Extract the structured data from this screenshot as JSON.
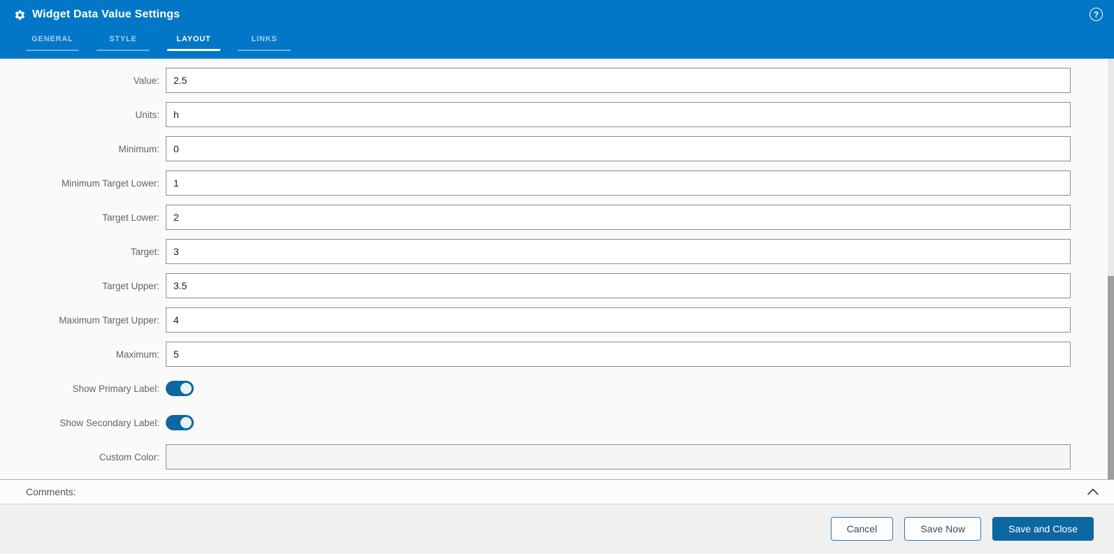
{
  "window": {
    "title": "Widget Data Value Settings"
  },
  "header": {
    "tabs": [
      {
        "label": "GENERAL",
        "active": false
      },
      {
        "label": "STYLE",
        "active": false
      },
      {
        "label": "LAYOUT",
        "active": true
      },
      {
        "label": "LINKS",
        "active": false
      }
    ]
  },
  "form": {
    "fields": [
      {
        "name": "value",
        "label": "Value:",
        "type": "text",
        "value": "2.5"
      },
      {
        "name": "units",
        "label": "Units:",
        "type": "text",
        "value": "h"
      },
      {
        "name": "minimum",
        "label": "Minimum:",
        "type": "text",
        "value": "0"
      },
      {
        "name": "minimum-target-lower",
        "label": "Minimum Target Lower:",
        "type": "text",
        "value": "1"
      },
      {
        "name": "target-lower",
        "label": "Target Lower:",
        "type": "text",
        "value": "2"
      },
      {
        "name": "target",
        "label": "Target:",
        "type": "text",
        "value": "3"
      },
      {
        "name": "target-upper",
        "label": "Target Upper:",
        "type": "text",
        "value": "3.5"
      },
      {
        "name": "maximum-target-upper",
        "label": "Maximum Target Upper:",
        "type": "text",
        "value": "4"
      },
      {
        "name": "maximum",
        "label": "Maximum:",
        "type": "text",
        "value": "5"
      },
      {
        "name": "show-primary-label",
        "label": "Show Primary Label:",
        "type": "toggle",
        "on": true
      },
      {
        "name": "show-secondary-label",
        "label": "Show Secondary Label:",
        "type": "toggle",
        "on": true
      },
      {
        "name": "custom-color",
        "label": "Custom Color:",
        "type": "text",
        "value": "",
        "muted": true
      }
    ]
  },
  "comments": {
    "label": "Comments:"
  },
  "footer": {
    "buttons": [
      {
        "label": "Cancel",
        "style": "outline"
      },
      {
        "label": "Save Now",
        "style": "outline"
      },
      {
        "label": "Save and Close",
        "style": "primary"
      }
    ]
  },
  "icons": {
    "title": "gear-icon",
    "help": "help-icon",
    "comments_collapse": "chevron-up-icon"
  },
  "colors": {
    "header_bg": "#0277c7",
    "accent": "#0d67a1",
    "inactive_tab_text": "#a9cde9",
    "page_bg": "#fafafa",
    "footer_bg": "#f0f0f0",
    "input_border": "#8c8c8c",
    "label_text": "#5c666f",
    "scrollbar_thumb": "#9f9f9f"
  }
}
